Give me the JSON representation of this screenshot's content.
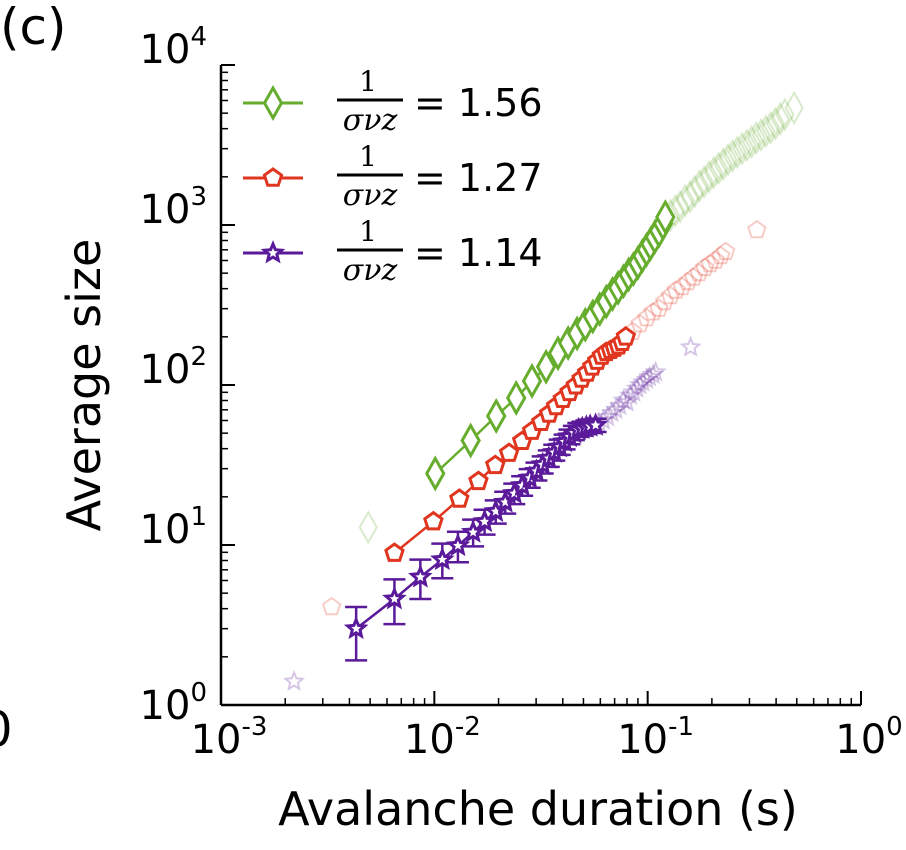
{
  "panel_label": "(c)",
  "edge_fragment": "0",
  "chart_data": {
    "type": "scatter",
    "title": "",
    "xlabel": "Avalanche duration (s)",
    "ylabel": "Average size",
    "xscale": "log",
    "yscale": "log",
    "xlim": [
      0.001,
      1
    ],
    "ylim": [
      1,
      10000
    ],
    "grid": false,
    "legend_position": "top-left",
    "x_ticks": [
      {
        "base": "10",
        "exp": "-3",
        "value": 0.001
      },
      {
        "base": "10",
        "exp": "-2",
        "value": 0.01
      },
      {
        "base": "10",
        "exp": "-1",
        "value": 0.1
      },
      {
        "base": "10",
        "exp": "0",
        "value": 1
      }
    ],
    "y_ticks": [
      {
        "base": "10",
        "exp": "0",
        "value": 1
      },
      {
        "base": "10",
        "exp": "1",
        "value": 10
      },
      {
        "base": "10",
        "exp": "2",
        "value": 100
      },
      {
        "base": "10",
        "exp": "3",
        "value": 1000
      },
      {
        "base": "10",
        "exp": "4",
        "value": 10000
      }
    ],
    "series": [
      {
        "name": "1/(σνz) = 1.56",
        "legend_numerator": "1",
        "legend_denominator": "σνz",
        "legend_value": "= 1.56",
        "marker": "diamond",
        "color": "#66ad2e",
        "fit_points": [
          [
            0.0101,
            28
          ],
          [
            0.0148,
            45
          ],
          [
            0.0195,
            64
          ],
          [
            0.0242,
            83
          ],
          [
            0.0287,
            106
          ],
          [
            0.0334,
            130
          ],
          [
            0.038,
            158
          ],
          [
            0.0424,
            183
          ],
          [
            0.0467,
            210
          ],
          [
            0.051,
            238
          ],
          [
            0.0553,
            268
          ],
          [
            0.0596,
            298
          ],
          [
            0.064,
            332
          ],
          [
            0.0684,
            370
          ],
          [
            0.0727,
            405
          ],
          [
            0.077,
            445
          ],
          [
            0.0814,
            490
          ],
          [
            0.0857,
            530
          ],
          [
            0.09,
            580
          ],
          [
            0.0944,
            640
          ],
          [
            0.0988,
            700
          ],
          [
            0.103,
            760
          ],
          [
            0.108,
            840
          ],
          [
            0.113,
            920
          ],
          [
            0.118,
            1020
          ],
          [
            0.121,
            1120
          ]
        ],
        "faded_points": [
          [
            0.0049,
            12.9
          ],
          [
            0.128,
            1150
          ],
          [
            0.135,
            1230
          ],
          [
            0.142,
            1300
          ],
          [
            0.15,
            1420
          ],
          [
            0.158,
            1500
          ],
          [
            0.166,
            1620
          ],
          [
            0.175,
            1750
          ],
          [
            0.184,
            1860
          ],
          [
            0.194,
            2000
          ],
          [
            0.204,
            2120
          ],
          [
            0.215,
            2260
          ],
          [
            0.226,
            2400
          ],
          [
            0.238,
            2560
          ],
          [
            0.25,
            2700
          ],
          [
            0.263,
            2850
          ],
          [
            0.277,
            3000
          ],
          [
            0.292,
            3150
          ],
          [
            0.307,
            3300
          ],
          [
            0.323,
            3500
          ],
          [
            0.34,
            3650
          ],
          [
            0.358,
            3850
          ],
          [
            0.377,
            4050
          ],
          [
            0.397,
            4300
          ],
          [
            0.418,
            4600
          ],
          [
            0.44,
            4900
          ],
          [
            0.486,
            5400
          ]
        ]
      },
      {
        "name": "1/(σνz) = 1.27",
        "legend_numerator": "1",
        "legend_denominator": "σνz",
        "legend_value": "= 1.27",
        "marker": "pentagon",
        "color": "#e0351f",
        "fit_points": [
          [
            0.0065,
            8.9
          ],
          [
            0.0099,
            14.0
          ],
          [
            0.0131,
            19.4
          ],
          [
            0.0161,
            25.0
          ],
          [
            0.0193,
            31.5
          ],
          [
            0.0224,
            37.5
          ],
          [
            0.0258,
            44.5
          ],
          [
            0.0287,
            51.5
          ],
          [
            0.0317,
            58.5
          ],
          [
            0.0345,
            66
          ],
          [
            0.0372,
            73.5
          ],
          [
            0.04,
            81.5
          ],
          [
            0.043,
            90
          ],
          [
            0.046,
            99
          ],
          [
            0.049,
            109
          ],
          [
            0.052,
            119
          ],
          [
            0.055,
            130
          ],
          [
            0.058,
            141
          ],
          [
            0.061,
            152
          ],
          [
            0.064,
            160
          ],
          [
            0.067,
            165
          ],
          [
            0.07,
            170
          ],
          [
            0.073,
            176
          ],
          [
            0.076,
            185
          ],
          [
            0.079,
            200
          ]
        ],
        "faded_points": [
          [
            0.0033,
            4.1
          ],
          [
            0.085,
            215
          ],
          [
            0.092,
            240
          ],
          [
            0.099,
            262
          ],
          [
            0.106,
            285
          ],
          [
            0.113,
            300
          ],
          [
            0.12,
            330
          ],
          [
            0.128,
            360
          ],
          [
            0.136,
            390
          ],
          [
            0.145,
            410
          ],
          [
            0.154,
            440
          ],
          [
            0.164,
            470
          ],
          [
            0.174,
            500
          ],
          [
            0.185,
            540
          ],
          [
            0.196,
            570
          ],
          [
            0.208,
            600
          ],
          [
            0.22,
            640
          ],
          [
            0.232,
            680
          ],
          [
            0.325,
            930
          ]
        ]
      },
      {
        "name": "1/(σνz) = 1.14",
        "legend_numerator": "1",
        "legend_denominator": "σνz",
        "legend_value": "= 1.14",
        "marker": "star",
        "color": "#5a1a9a",
        "fit_points": [
          [
            0.0043,
            3.0,
            1.9,
            4.1
          ],
          [
            0.0065,
            4.6,
            3.2,
            6.1
          ],
          [
            0.0086,
            6.3,
            4.6,
            8.1
          ],
          [
            0.0109,
            8.1,
            6.2,
            10.2
          ],
          [
            0.0129,
            9.9,
            7.8,
            12.1
          ],
          [
            0.0152,
            12.0,
            9.8,
            14.4
          ],
          [
            0.0172,
            14.0,
            11.6,
            16.6
          ],
          [
            0.0194,
            16.2,
            13.6,
            19.0
          ],
          [
            0.0215,
            18.5,
            15.7,
            21.5
          ],
          [
            0.0237,
            21.0,
            18.0,
            24.2
          ],
          [
            0.0258,
            23.5,
            20.3,
            26.9
          ],
          [
            0.028,
            26.2,
            22.8,
            29.8
          ],
          [
            0.0301,
            28.9,
            25.3,
            32.7
          ],
          [
            0.0322,
            31.8,
            28.0,
            35.8
          ],
          [
            0.0344,
            34.8,
            30.8,
            39.0
          ],
          [
            0.0365,
            37.9,
            33.7,
            42.3
          ],
          [
            0.0387,
            41.0,
            36.6,
            45.6
          ],
          [
            0.0408,
            44.2,
            39.6,
            49.0
          ],
          [
            0.043,
            47.5,
            42.6,
            52.6
          ],
          [
            0.0451,
            50.2,
            45.2,
            55.5
          ],
          [
            0.0473,
            52.5,
            47.4,
            57.9
          ],
          [
            0.0494,
            53.5,
            48.3,
            58.9
          ],
          [
            0.0516,
            54.5,
            49.3,
            60.0
          ],
          [
            0.0537,
            55.3,
            50.1,
            60.8
          ],
          [
            0.057,
            56.0,
            50.8,
            61.5
          ]
        ],
        "faded_points": [
          [
            0.0022,
            1.4
          ],
          [
            0.059,
            58
          ],
          [
            0.062,
            60
          ],
          [
            0.065,
            63
          ],
          [
            0.068,
            67
          ],
          [
            0.071,
            70
          ],
          [
            0.074,
            74
          ],
          [
            0.077,
            80
          ],
          [
            0.08,
            78
          ],
          [
            0.083,
            86
          ],
          [
            0.086,
            90
          ],
          [
            0.089,
            95
          ],
          [
            0.092,
            100
          ],
          [
            0.095,
            104
          ],
          [
            0.099,
            108
          ],
          [
            0.102,
            112
          ],
          [
            0.106,
            116
          ],
          [
            0.109,
            120
          ],
          [
            0.159,
            172
          ]
        ]
      }
    ]
  }
}
